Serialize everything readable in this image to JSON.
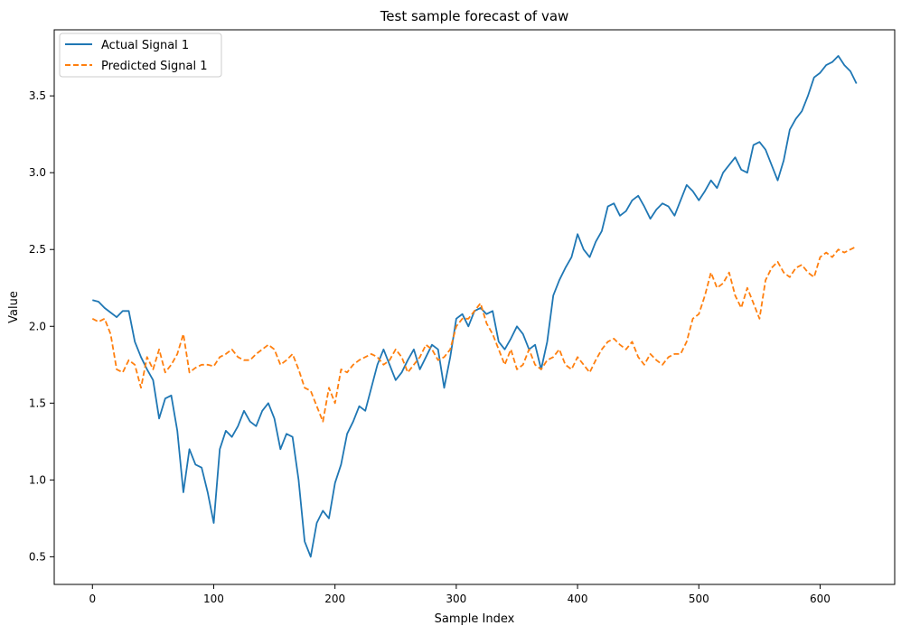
{
  "chart_data": {
    "type": "line",
    "title": "Test sample forecast of vaw",
    "xlabel": "Sample Index",
    "ylabel": "Value",
    "xlim": [
      -31.5,
      661.5
    ],
    "ylim": [
      0.32,
      3.93
    ],
    "xticks": [
      0,
      100,
      200,
      300,
      400,
      500,
      600
    ],
    "yticks": [
      0.5,
      1.0,
      1.5,
      2.0,
      2.5,
      3.0,
      3.5
    ],
    "xtick_labels": [
      "0",
      "100",
      "200",
      "300",
      "400",
      "500",
      "600"
    ],
    "ytick_labels": [
      "0.5",
      "1.0",
      "1.5",
      "2.0",
      "2.5",
      "3.0",
      "3.5"
    ],
    "grid": false,
    "legend_position": "upper left",
    "series": [
      {
        "name": "Actual Signal 1",
        "color": "#1f77b4",
        "style": "solid",
        "x": [
          0,
          5,
          10,
          15,
          20,
          25,
          30,
          35,
          40,
          45,
          50,
          55,
          60,
          65,
          70,
          75,
          80,
          85,
          90,
          95,
          100,
          105,
          110,
          115,
          120,
          125,
          130,
          135,
          140,
          145,
          150,
          155,
          160,
          165,
          170,
          175,
          180,
          185,
          190,
          195,
          200,
          205,
          210,
          215,
          220,
          225,
          230,
          235,
          240,
          245,
          250,
          255,
          260,
          265,
          270,
          275,
          280,
          285,
          290,
          295,
          300,
          305,
          310,
          315,
          320,
          325,
          330,
          335,
          340,
          345,
          350,
          355,
          360,
          365,
          370,
          375,
          380,
          385,
          390,
          395,
          400,
          405,
          410,
          415,
          420,
          425,
          430,
          435,
          440,
          445,
          450,
          455,
          460,
          465,
          470,
          475,
          480,
          485,
          490,
          495,
          500,
          505,
          510,
          515,
          520,
          525,
          530,
          535,
          540,
          545,
          550,
          555,
          560,
          565,
          570,
          575,
          580,
          585,
          590,
          595,
          600,
          605,
          610,
          615,
          620,
          625,
          630
        ],
        "y": [
          2.17,
          2.16,
          2.12,
          2.09,
          2.06,
          2.1,
          2.1,
          1.9,
          1.8,
          1.72,
          1.65,
          1.4,
          1.53,
          1.55,
          1.32,
          0.92,
          1.2,
          1.1,
          1.08,
          0.92,
          0.72,
          1.2,
          1.32,
          1.28,
          1.35,
          1.45,
          1.38,
          1.35,
          1.45,
          1.5,
          1.4,
          1.2,
          1.3,
          1.28,
          1.0,
          0.6,
          0.5,
          0.72,
          0.8,
          0.75,
          0.98,
          1.1,
          1.3,
          1.38,
          1.48,
          1.45,
          1.6,
          1.75,
          1.85,
          1.75,
          1.65,
          1.7,
          1.78,
          1.85,
          1.72,
          1.8,
          1.88,
          1.85,
          1.6,
          1.8,
          2.05,
          2.08,
          2.0,
          2.1,
          2.12,
          2.08,
          2.1,
          1.9,
          1.85,
          1.92,
          2.0,
          1.95,
          1.85,
          1.88,
          1.72,
          1.9,
          2.2,
          2.3,
          2.38,
          2.45,
          2.6,
          2.5,
          2.45,
          2.55,
          2.62,
          2.78,
          2.8,
          2.72,
          2.75,
          2.82,
          2.85,
          2.78,
          2.7,
          2.76,
          2.8,
          2.78,
          2.72,
          2.82,
          2.92,
          2.88,
          2.82,
          2.88,
          2.95,
          2.9,
          3.0,
          3.05,
          3.1,
          3.02,
          3.0,
          3.18,
          3.2,
          3.15,
          3.05,
          2.95,
          3.08,
          3.28,
          3.35,
          3.4,
          3.5,
          3.62,
          3.65,
          3.7,
          3.72,
          3.76,
          3.7,
          3.66,
          3.58
        ]
      },
      {
        "name": "Predicted Signal 1",
        "color": "#ff7f0e",
        "style": "dashed",
        "x": [
          0,
          5,
          10,
          15,
          20,
          25,
          30,
          35,
          40,
          45,
          50,
          55,
          60,
          65,
          70,
          75,
          80,
          85,
          90,
          95,
          100,
          105,
          110,
          115,
          120,
          125,
          130,
          135,
          140,
          145,
          150,
          155,
          160,
          165,
          170,
          175,
          180,
          185,
          190,
          195,
          200,
          205,
          210,
          215,
          220,
          225,
          230,
          235,
          240,
          245,
          250,
          255,
          260,
          265,
          270,
          275,
          280,
          285,
          290,
          295,
          300,
          305,
          310,
          315,
          320,
          325,
          330,
          335,
          340,
          345,
          350,
          355,
          360,
          365,
          370,
          375,
          380,
          385,
          390,
          395,
          400,
          405,
          410,
          415,
          420,
          425,
          430,
          435,
          440,
          445,
          450,
          455,
          460,
          465,
          470,
          475,
          480,
          485,
          490,
          495,
          500,
          505,
          510,
          515,
          520,
          525,
          530,
          535,
          540,
          545,
          550,
          555,
          560,
          565,
          570,
          575,
          580,
          585,
          590,
          595,
          600,
          605,
          610,
          615,
          620,
          625,
          630
        ],
        "y": [
          2.05,
          2.03,
          2.05,
          1.95,
          1.72,
          1.7,
          1.78,
          1.75,
          1.6,
          1.8,
          1.72,
          1.85,
          1.7,
          1.75,
          1.82,
          1.95,
          1.7,
          1.73,
          1.75,
          1.75,
          1.74,
          1.8,
          1.82,
          1.85,
          1.8,
          1.78,
          1.78,
          1.82,
          1.85,
          1.88,
          1.85,
          1.75,
          1.78,
          1.82,
          1.72,
          1.6,
          1.58,
          1.48,
          1.38,
          1.6,
          1.5,
          1.72,
          1.7,
          1.75,
          1.78,
          1.8,
          1.82,
          1.8,
          1.75,
          1.78,
          1.85,
          1.8,
          1.7,
          1.75,
          1.8,
          1.88,
          1.85,
          1.78,
          1.8,
          1.85,
          2.0,
          2.05,
          2.05,
          2.1,
          2.15,
          2.02,
          1.95,
          1.85,
          1.75,
          1.85,
          1.72,
          1.75,
          1.85,
          1.75,
          1.72,
          1.78,
          1.8,
          1.85,
          1.75,
          1.72,
          1.8,
          1.75,
          1.7,
          1.78,
          1.85,
          1.9,
          1.92,
          1.88,
          1.85,
          1.9,
          1.8,
          1.75,
          1.82,
          1.78,
          1.75,
          1.8,
          1.82,
          1.82,
          1.9,
          2.05,
          2.08,
          2.2,
          2.35,
          2.25,
          2.28,
          2.35,
          2.2,
          2.12,
          2.25,
          2.15,
          2.05,
          2.3,
          2.38,
          2.42,
          2.35,
          2.32,
          2.38,
          2.4,
          2.35,
          2.32,
          2.45,
          2.48,
          2.45,
          2.5,
          2.48,
          2.5,
          2.52
        ]
      }
    ]
  }
}
